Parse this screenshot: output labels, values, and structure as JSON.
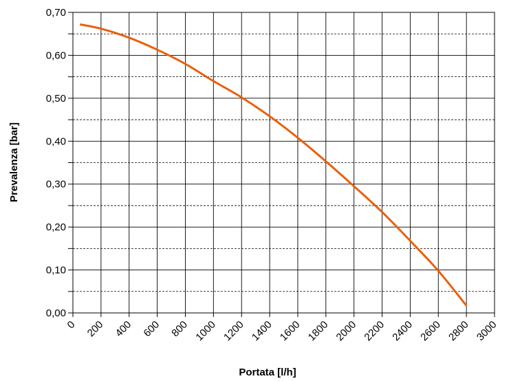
{
  "chart_data": {
    "type": "line",
    "title": "",
    "xlabel": "Portata [l/h]",
    "ylabel": "Prevalenza  [bar]",
    "xlim": [
      0,
      3000
    ],
    "ylim": [
      0,
      0.7
    ],
    "x_ticks": [
      "0",
      "200",
      "400",
      "600",
      "800",
      "1000",
      "1200",
      "1400",
      "1600",
      "1800",
      "2000",
      "2200",
      "2400",
      "2600",
      "2800",
      "3000"
    ],
    "y_ticks": [
      "0,00",
      "0,10",
      "0,20",
      "0,30",
      "0,40",
      "0,50",
      "0,60",
      "0,70"
    ],
    "x_tick_values": [
      0,
      200,
      400,
      600,
      800,
      1000,
      1200,
      1400,
      1600,
      1800,
      2000,
      2200,
      2400,
      2600,
      2800,
      3000
    ],
    "y_tick_values": [
      0,
      0.1,
      0.2,
      0.3,
      0.4,
      0.5,
      0.6,
      0.7
    ],
    "y_minor_dashed": [
      0.05,
      0.15,
      0.25,
      0.35,
      0.45,
      0.55,
      0.65
    ],
    "grid": true,
    "legend": "none",
    "series": [
      {
        "color": "#E8600C",
        "x": [
          50,
          200,
          400,
          600,
          800,
          1000,
          1200,
          1400,
          1600,
          1800,
          2000,
          2200,
          2400,
          2600,
          2800
        ],
        "y": [
          0.672,
          0.662,
          0.641,
          0.613,
          0.58,
          0.54,
          0.502,
          0.458,
          0.408,
          0.353,
          0.295,
          0.235,
          0.168,
          0.098,
          0.017
        ]
      }
    ]
  }
}
